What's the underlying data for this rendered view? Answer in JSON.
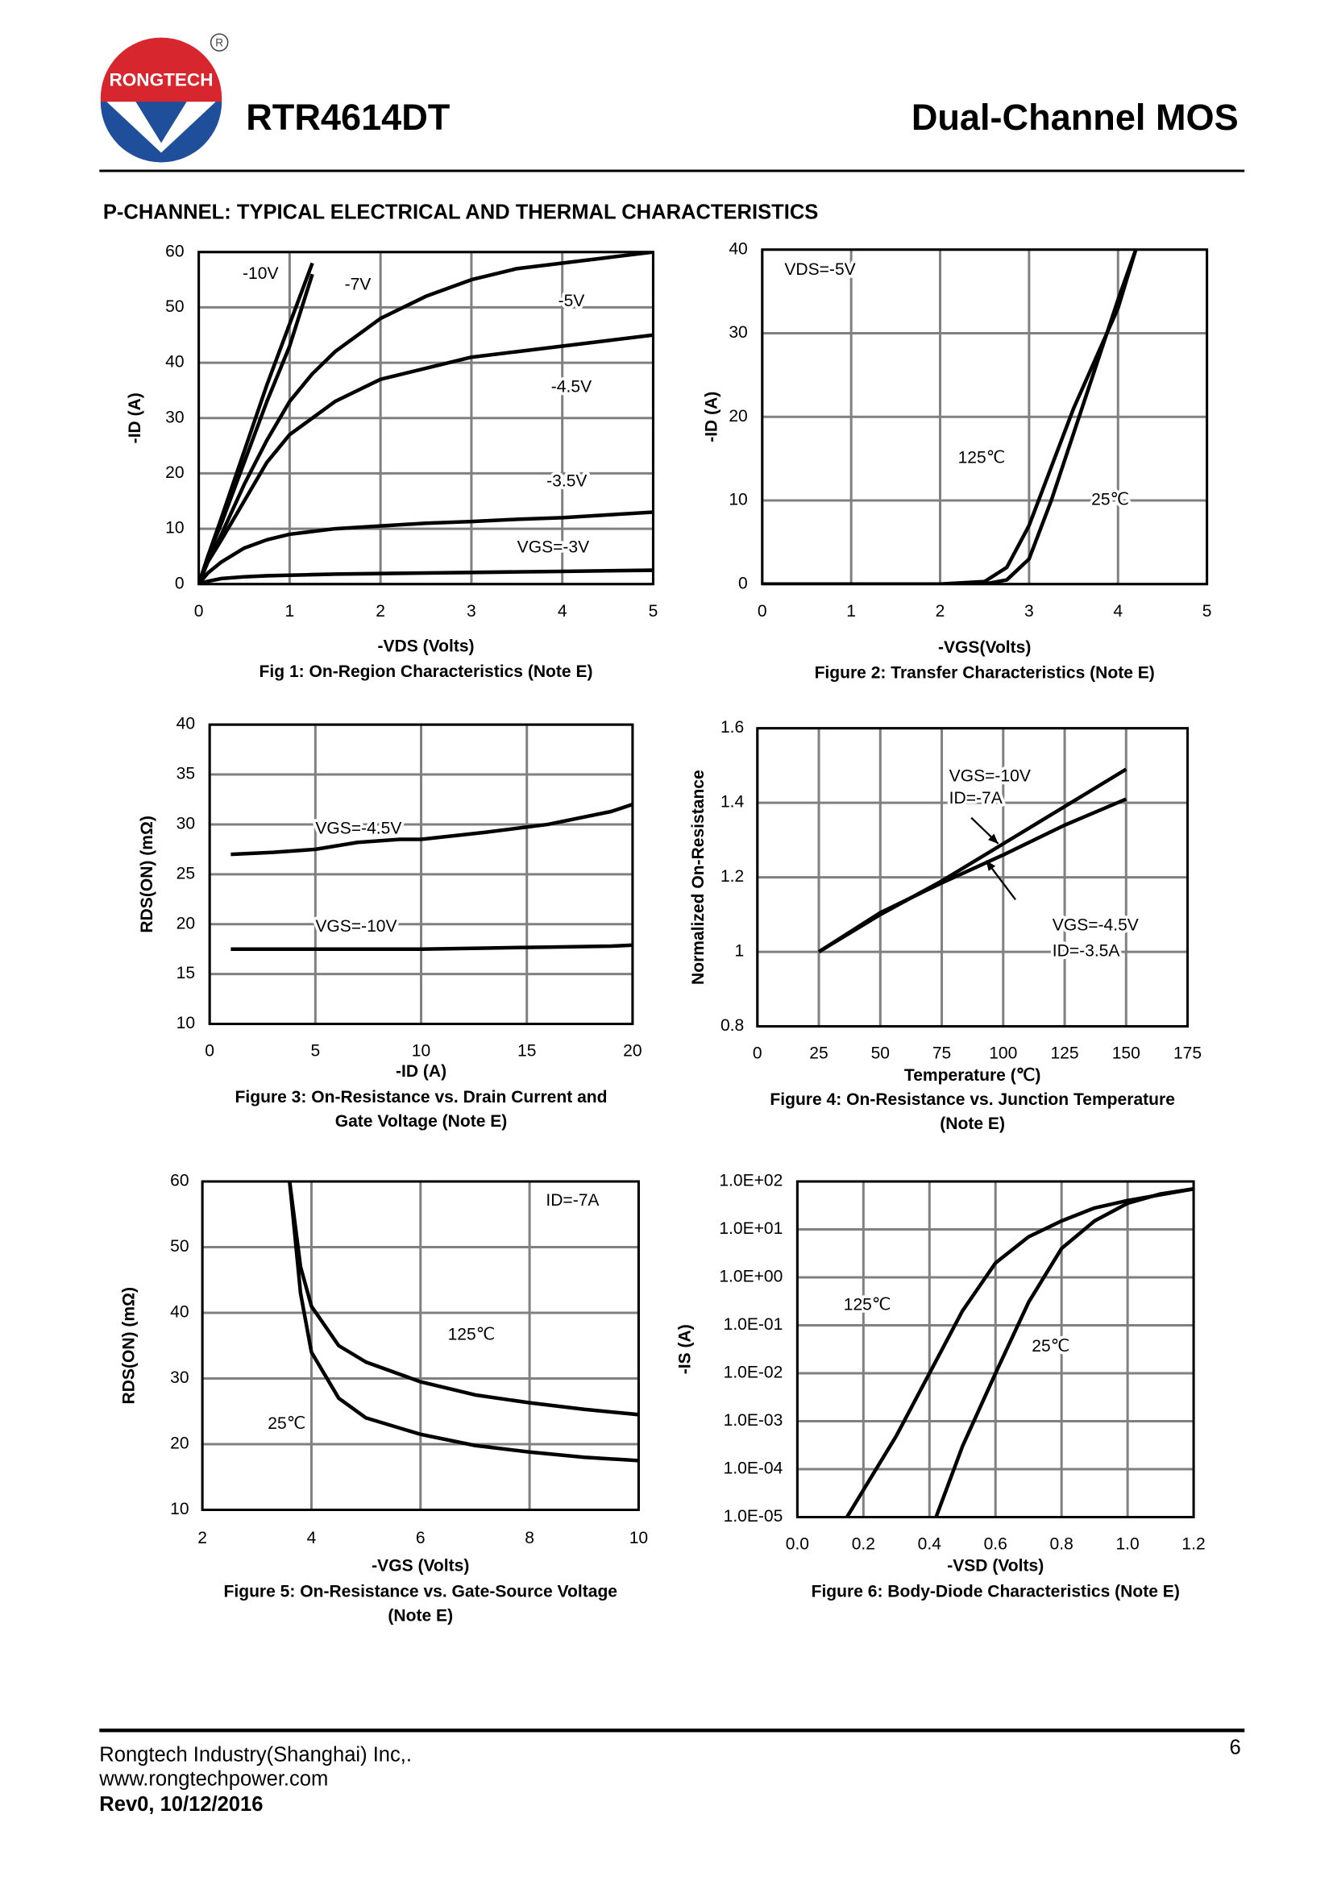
{
  "header": {
    "logo": "RONGTECH",
    "title": "RTR4614DT",
    "subtitle": "Dual-Channel MOS"
  },
  "section_title": "P-CHANNEL: TYPICAL ELECTRICAL AND THERMAL CHARACTERISTICS",
  "chart_data": [
    {
      "type": "line",
      "title": [
        "Fig 1: On-Region Characteristics (Note E)"
      ],
      "x_label": "-VDS (Volts)",
      "y_label": "-ID (A)",
      "x": [
        0,
        0.1,
        0.25,
        0.5,
        0.75,
        1,
        1.25,
        1.5,
        2,
        2.5,
        3,
        3.5,
        4,
        4.5,
        5
      ],
      "series": [
        {
          "name": "-10V",
          "color": "#000000",
          "values": [
            0,
            5,
            12,
            24,
            36,
            47,
            58,
            null,
            null,
            null,
            null,
            null,
            null,
            null,
            null
          ]
        },
        {
          "name": "-7V",
          "color": "#000000",
          "values": [
            0,
            5,
            11,
            22,
            33,
            43,
            56,
            null,
            null,
            null,
            null,
            null,
            null,
            null,
            null
          ]
        },
        {
          "name": "-5V",
          "color": "#000000",
          "values": [
            0,
            4,
            9,
            18,
            26,
            33,
            38,
            42,
            48,
            52,
            55,
            57,
            58,
            59,
            60
          ]
        },
        {
          "name": "-4.5V",
          "color": "#000000",
          "values": [
            0,
            4,
            8,
            15,
            22,
            27,
            30,
            33,
            37,
            39,
            41,
            42,
            43,
            44,
            45
          ]
        },
        {
          "name": "-3.5V",
          "color": "#000000",
          "values": [
            0,
            2,
            4,
            6.5,
            8,
            9,
            9.5,
            10,
            10.5,
            11,
            11.3,
            11.7,
            12,
            12.5,
            13
          ]
        },
        {
          "name": "VGS=-3V",
          "color": "#000000",
          "values": [
            0,
            0.5,
            1,
            1.3,
            1.5,
            1.6,
            1.7,
            1.8,
            1.9,
            2,
            2.1,
            2.2,
            2.3,
            2.4,
            2.5
          ]
        }
      ],
      "xlim": [
        0,
        5
      ],
      "xticks": [
        0,
        1,
        2,
        3,
        4,
        5
      ],
      "ylim": [
        0,
        60
      ],
      "yticks": [
        0,
        10,
        20,
        30,
        40,
        50,
        60
      ],
      "grid": true,
      "annotations": []
    },
    {
      "type": "line",
      "title": [
        "Figure 2: Transfer Characteristics (Note E)"
      ],
      "x_label": "-VGS(Volts)",
      "y_label": "-ID (A)",
      "x": [
        0,
        2,
        2.5,
        2.75,
        3,
        3.25,
        3.5,
        3.75,
        4,
        4.2
      ],
      "series": [
        {
          "name": "125℃",
          "color": "#000000",
          "values": [
            0,
            0,
            0.3,
            2,
            7,
            14,
            21,
            27,
            33,
            40
          ]
        },
        {
          "name": "25℃",
          "color": "#000000",
          "values": [
            0,
            0,
            0,
            0.5,
            3,
            10,
            18,
            26,
            34,
            40
          ]
        }
      ],
      "xlim": [
        0,
        5
      ],
      "xticks": [
        0,
        1,
        2,
        3,
        4,
        5
      ],
      "ylim": [
        0,
        40
      ],
      "yticks": [
        0,
        10,
        20,
        30,
        40
      ],
      "grid": true,
      "annotations": [
        "VDS=-5V"
      ]
    },
    {
      "type": "line",
      "title": [
        "Figure 3: On-Resistance vs. Drain Current and",
        "Gate Voltage (Note E)"
      ],
      "x_label": "-ID (A)",
      "y_label": "RDS(ON) (mΩ)",
      "x": [
        1,
        3,
        5,
        7,
        9,
        10,
        13,
        16,
        19,
        20
      ],
      "series": [
        {
          "name": "VGS=-4.5V",
          "color": "#000000",
          "values": [
            27,
            27.2,
            27.5,
            28.2,
            28.5,
            28.5,
            29.2,
            30,
            31.3,
            32
          ]
        },
        {
          "name": "VGS=-10V",
          "color": "#000000",
          "values": [
            17.5,
            17.5,
            17.5,
            17.5,
            17.5,
            17.5,
            17.6,
            17.7,
            17.8,
            17.9
          ]
        }
      ],
      "xlim": [
        0,
        20
      ],
      "xticks": [
        0,
        5,
        10,
        15,
        20
      ],
      "ylim": [
        10,
        40
      ],
      "yticks": [
        10,
        15,
        20,
        25,
        30,
        35,
        40
      ],
      "grid": true,
      "annotations": []
    },
    {
      "type": "line",
      "title": [
        "Figure 4: On-Resistance vs. Junction Temperature",
        "(Note E)"
      ],
      "x_label": "Temperature (℃)",
      "y_label": "Normalized On-Resistance",
      "x": [
        25,
        50,
        75,
        100,
        125,
        150
      ],
      "series": [
        {
          "name": "VGS=-10V",
          "color": "#000000",
          "values": [
            1,
            1.1,
            1.19,
            1.29,
            1.39,
            1.49
          ]
        },
        {
          "name": "VGS=-4.5V",
          "color": "#000000",
          "values": [
            1,
            1.105,
            1.185,
            1.26,
            1.34,
            1.41
          ]
        }
      ],
      "xlim": [
        0,
        175
      ],
      "xticks": [
        0,
        25,
        50,
        75,
        100,
        125,
        150,
        175
      ],
      "ylim": [
        0.8,
        1.6
      ],
      "yticks": [
        0.8,
        1,
        1.2,
        1.4,
        1.6
      ],
      "grid": true,
      "annotations": [
        "ID=-7A",
        "ID=-3.5A"
      ]
    },
    {
      "type": "line",
      "title": [
        "Figure 5: On-Resistance vs. Gate-Source Voltage",
        "(Note E)"
      ],
      "x_label": "-VGS (Volts)",
      "y_label": "RDS(ON) (mΩ)",
      "x": [
        3.6,
        3.8,
        4,
        4.5,
        5,
        6,
        7,
        8,
        9,
        10
      ],
      "series": [
        {
          "name": "125℃",
          "color": "#000000",
          "values": [
            60,
            47,
            41,
            35,
            32.5,
            29.5,
            27.5,
            26.3,
            25.3,
            24.5
          ]
        },
        {
          "name": "25℃",
          "color": "#000000",
          "values": [
            60,
            43,
            34,
            27,
            24,
            21.5,
            19.8,
            18.8,
            18,
            17.5
          ]
        }
      ],
      "xlim": [
        2,
        10
      ],
      "xticks": [
        2,
        4,
        6,
        8,
        10
      ],
      "ylim": [
        10,
        60
      ],
      "yticks": [
        10,
        20,
        30,
        40,
        50,
        60
      ],
      "grid": true,
      "annotations": [
        "ID=-7A"
      ]
    },
    {
      "type": "line",
      "title": [
        "Figure 6: Body-Diode Characteristics (Note E)"
      ],
      "x_label": "-VSD (Volts)",
      "y_label": "-IS (A)",
      "series": [
        {
          "name": "125℃",
          "color": "#000000",
          "x": [
            0.15,
            0.3,
            0.4,
            0.5,
            0.6,
            0.7,
            0.8,
            0.9,
            1.0,
            1.2
          ],
          "values": [
            1e-05,
            0.0005,
            0.01,
            0.2,
            2,
            7,
            15,
            28,
            40,
            70
          ]
        },
        {
          "name": "25℃",
          "color": "#000000",
          "x": [
            0.42,
            0.5,
            0.6,
            0.7,
            0.8,
            0.9,
            1.0,
            1.1,
            1.2
          ],
          "values": [
            1e-05,
            0.0003,
            0.01,
            0.3,
            4,
            15,
            35,
            55,
            70
          ]
        }
      ],
      "log_y": true,
      "xlim": [
        0,
        1.2
      ],
      "xticks": [
        {
          "value": 0,
          "label": "0.0"
        },
        0.2,
        0.4,
        0.6,
        0.8,
        {
          "value": 1,
          "label": "1.0"
        },
        1.2
      ],
      "ylim": [
        1e-05,
        100
      ],
      "yticks": [
        {
          "value": 1e-05,
          "label": "1.0E-05"
        },
        {
          "value": 0.0001,
          "label": "1.0E-04"
        },
        {
          "value": 0.001,
          "label": "1.0E-03"
        },
        {
          "value": 0.01,
          "label": "1.0E-02"
        },
        {
          "value": 0.1,
          "label": "1.0E-01"
        },
        {
          "value": 1,
          "label": "1.0E+00"
        },
        {
          "value": 10,
          "label": "1.0E+01"
        },
        {
          "value": 100,
          "label": "1.0E+02"
        }
      ],
      "grid": true,
      "annotations": []
    }
  ],
  "footer": {
    "company": "Rongtech Industry(Shanghai) Inc,.",
    "website": "www.rongtechpower.com",
    "revision": "Rev0, 10/12/2016",
    "page": "6"
  }
}
